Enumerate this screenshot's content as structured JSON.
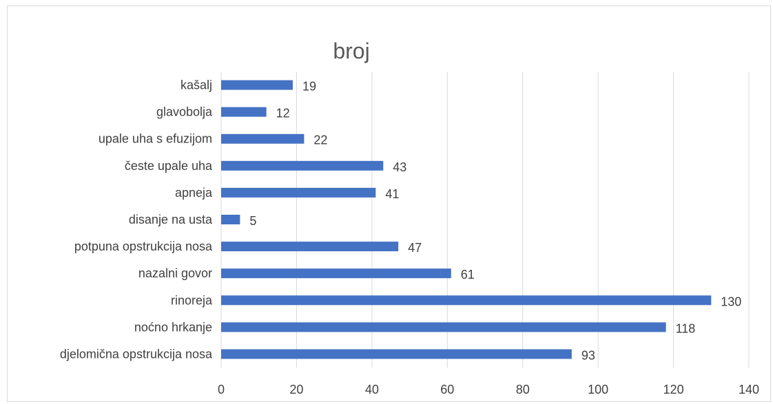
{
  "chart_data": {
    "type": "bar",
    "orientation": "horizontal",
    "title": "broj",
    "categories": [
      "djelomična opstrukcija nosa",
      "noćno hrkanje",
      "rinoreja",
      "nazalni govor",
      "potpuna opstrukcija nosa",
      "disanje na usta",
      "apneja",
      "česte upale uha",
      "upale uha s efuzijom",
      "glavobolja",
      "kašalj"
    ],
    "values": [
      93,
      118,
      130,
      61,
      47,
      5,
      41,
      43,
      22,
      12,
      19
    ],
    "xlim": [
      0,
      140
    ],
    "xticks": [
      0,
      20,
      40,
      60,
      80,
      100,
      120,
      140
    ],
    "grid": true,
    "legend": "none",
    "bar_color": "#4472c4"
  }
}
